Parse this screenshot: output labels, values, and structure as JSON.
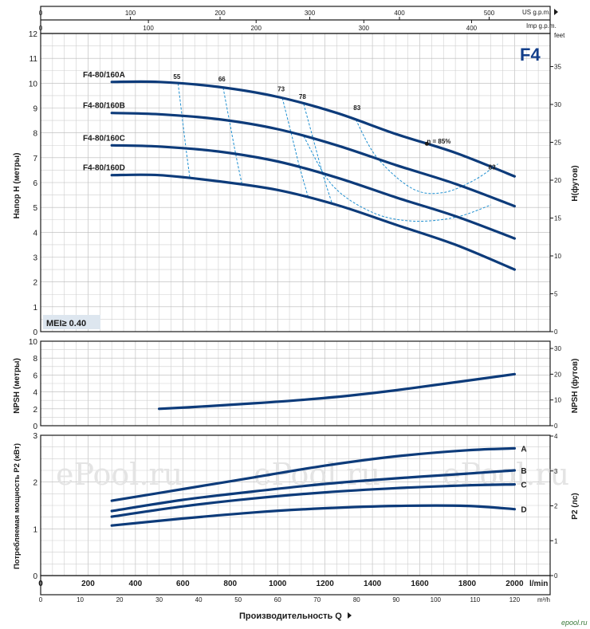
{
  "badge": "F4",
  "mei": "MEI≥ 0.40",
  "watermark": "ePool.ru",
  "site": "epool.ru",
  "top_axes": {
    "usgpm_label": "US g.p.m.",
    "usgpm_ticks": [
      0,
      100,
      200,
      300,
      400,
      500
    ],
    "impgpm_label": "Imp g.p.m.",
    "impgpm_ticks": [
      0,
      100,
      200,
      300,
      400
    ]
  },
  "bottom_axes": {
    "lmin_label": "l/min",
    "lmin_ticks": [
      0,
      200,
      400,
      600,
      800,
      1000,
      1200,
      1400,
      1600,
      1800,
      2000
    ],
    "m3h_label": "m³/h",
    "m3h_ticks": [
      0,
      10,
      20,
      30,
      40,
      50,
      60,
      70,
      80,
      90,
      100,
      110,
      120
    ],
    "title": "Производительность Q"
  },
  "chart_data": [
    {
      "type": "line",
      "name": "head",
      "ylabel": "Напор H (метры)",
      "y2label": "H(футов)",
      "ylim": [
        0,
        12
      ],
      "y_ticks": [
        0,
        1,
        2,
        3,
        4,
        5,
        6,
        7,
        8,
        9,
        10,
        11,
        12
      ],
      "y2_ticks": [
        0,
        5,
        10,
        15,
        20,
        25,
        30,
        35
      ],
      "y2_unit": "feet",
      "xlim": [
        0,
        2150
      ],
      "series": [
        {
          "name": "F4-80/160A",
          "x": [
            300,
            500,
            750,
            1000,
            1250,
            1500,
            1750,
            2000
          ],
          "values": [
            10.05,
            10.05,
            9.85,
            9.45,
            8.8,
            7.95,
            7.2,
            6.25
          ]
        },
        {
          "name": "F4-80/160B",
          "x": [
            300,
            500,
            750,
            1000,
            1250,
            1500,
            1750,
            2000
          ],
          "values": [
            8.8,
            8.75,
            8.55,
            8.15,
            7.5,
            6.7,
            5.95,
            5.05
          ]
        },
        {
          "name": "F4-80/160C",
          "x": [
            300,
            500,
            750,
            1000,
            1250,
            1500,
            1750,
            2000
          ],
          "values": [
            7.5,
            7.45,
            7.25,
            6.85,
            6.2,
            5.4,
            4.65,
            3.75
          ]
        },
        {
          "name": "F4-80/160D",
          "x": [
            300,
            500,
            750,
            1000,
            1250,
            1500,
            1750,
            2000
          ],
          "values": [
            6.3,
            6.3,
            6.05,
            5.7,
            5.1,
            4.3,
            3.5,
            2.5
          ]
        }
      ],
      "efficiency_labels": [
        "55",
        "66",
        "73",
        "78",
        "83",
        "η = 85%",
        "83"
      ]
    },
    {
      "type": "line",
      "name": "npsh",
      "ylabel": "NPSH (метры)",
      "y2label": "NPSH (футов)",
      "ylim": [
        0,
        10
      ],
      "y_ticks": [
        0,
        2,
        4,
        6,
        8,
        10
      ],
      "y2_ticks": [
        0,
        10,
        20,
        30
      ],
      "series": [
        {
          "x": [
            500,
            700,
            900,
            1100,
            1300,
            1500,
            1700,
            2000
          ],
          "values": [
            2.0,
            2.3,
            2.65,
            3.05,
            3.55,
            4.2,
            4.95,
            6.1
          ]
        }
      ]
    },
    {
      "type": "line",
      "name": "power",
      "ylabel": "Потребляемая мощность P2 (кВт)",
      "y2label": "P2 (лс)",
      "ylim": [
        0,
        3
      ],
      "y_ticks": [
        0,
        1,
        2,
        3
      ],
      "y2_ticks": [
        0,
        1,
        2,
        3,
        4
      ],
      "series": [
        {
          "name": "A",
          "x": [
            300,
            600,
            900,
            1200,
            1500,
            1800,
            2000
          ],
          "values": [
            1.6,
            1.85,
            2.1,
            2.35,
            2.55,
            2.68,
            2.72
          ]
        },
        {
          "name": "B",
          "x": [
            300,
            600,
            900,
            1200,
            1500,
            1800,
            2000
          ],
          "values": [
            1.38,
            1.62,
            1.8,
            1.96,
            2.08,
            2.18,
            2.25
          ]
        },
        {
          "name": "C",
          "x": [
            300,
            600,
            900,
            1200,
            1500,
            1800,
            2000
          ],
          "values": [
            1.26,
            1.48,
            1.65,
            1.78,
            1.87,
            1.93,
            1.95
          ]
        },
        {
          "name": "D",
          "x": [
            300,
            600,
            900,
            1200,
            1500,
            1800,
            2000
          ],
          "values": [
            1.07,
            1.22,
            1.35,
            1.44,
            1.49,
            1.49,
            1.42
          ]
        }
      ]
    }
  ],
  "colors": {
    "curve": "#0d3b7a",
    "iso": "#1f8fd0",
    "badge": "#123e8a",
    "mei_bg": "#dde6ef"
  }
}
